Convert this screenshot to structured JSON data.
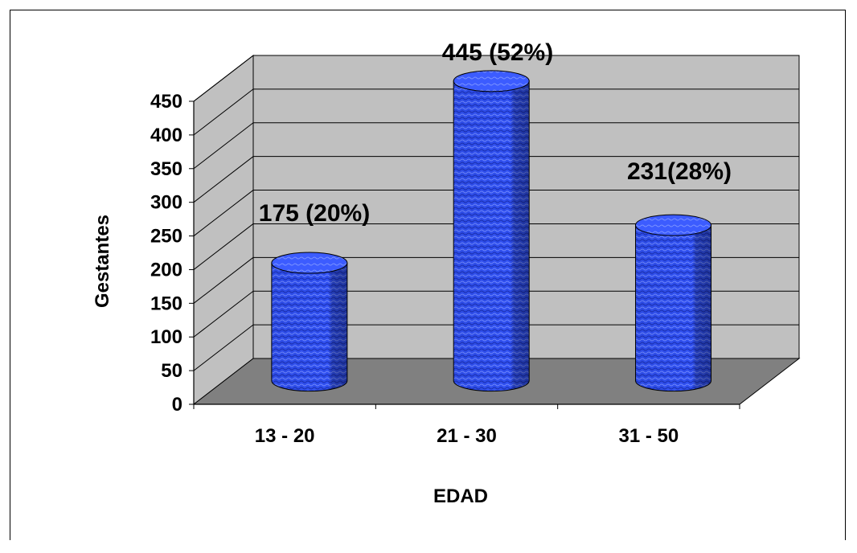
{
  "chart_data": {
    "type": "bar",
    "style": "3d-cylinder",
    "categories": [
      "13 - 20",
      "21 - 30",
      "31 - 50"
    ],
    "values": [
      175,
      445,
      231
    ],
    "data_labels": [
      "175 (20%)",
      "445 (52%)",
      "231(28%)"
    ],
    "title": "",
    "xlabel": "EDAD",
    "ylabel": "Gestantes",
    "ylim": [
      0,
      450
    ],
    "yticks": [
      0,
      50,
      100,
      150,
      200,
      250,
      300,
      350,
      400,
      450
    ],
    "grid": true,
    "legend": "none",
    "colors": {
      "bar": "#2f4ff0",
      "bar_dark": "#1a2fb0",
      "bar_top": "#4060ff",
      "back_wall": "#c0c0c0",
      "side_wall": "#c0c0c0",
      "floor": "#808080",
      "gridline": "#000000"
    }
  }
}
